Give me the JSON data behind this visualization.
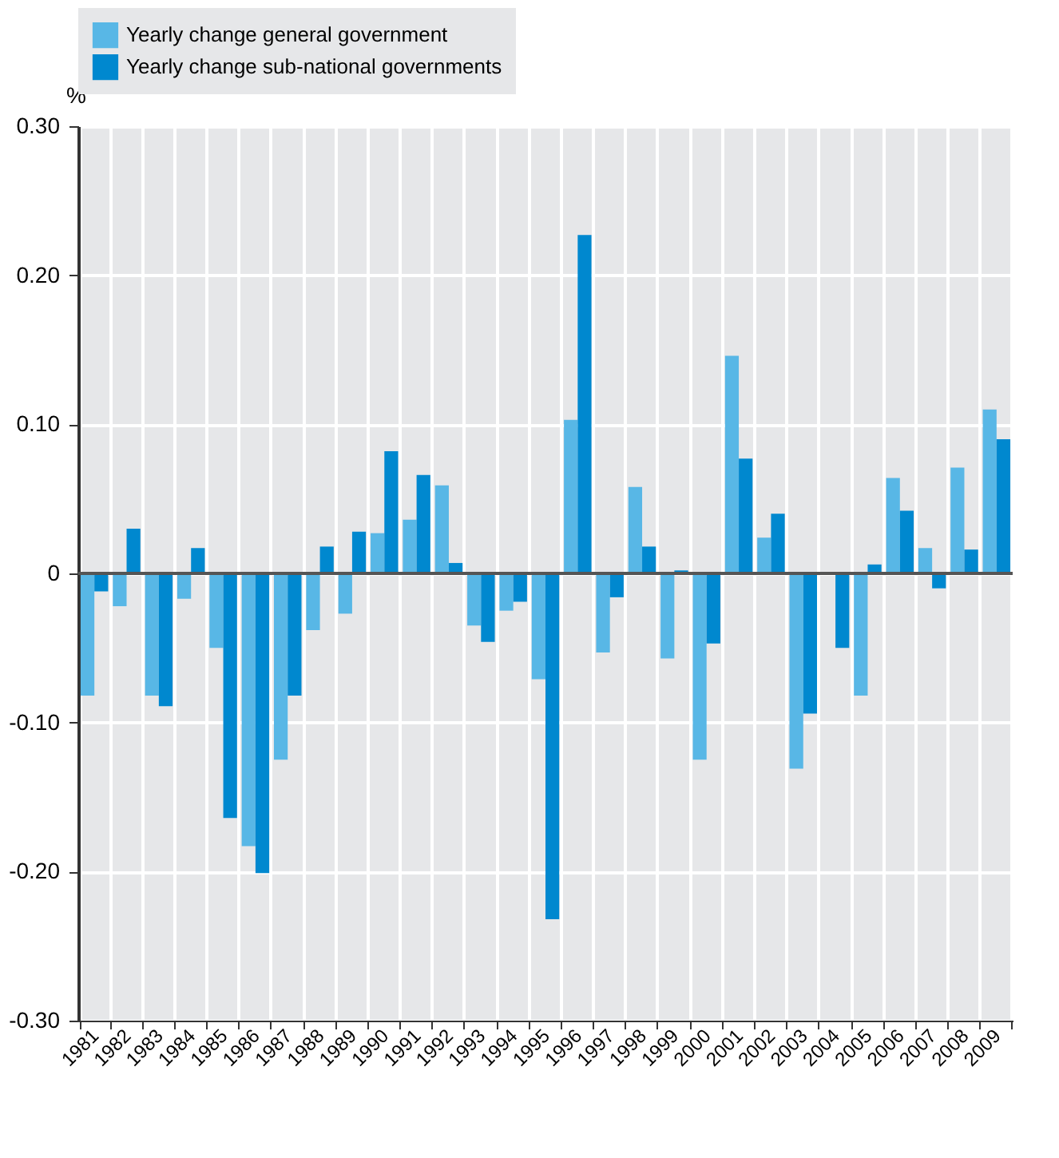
{
  "chart_data": {
    "type": "bar",
    "ylabel": "%",
    "categories": [
      "1981",
      "1982",
      "1983",
      "1984",
      "1985",
      "1986",
      "1987",
      "1988",
      "1989",
      "1990",
      "1991",
      "1992",
      "1993",
      "1994",
      "1995",
      "1996",
      "1997",
      "1998",
      "1999",
      "2000",
      "2001",
      "2002",
      "2003",
      "2004",
      "2005",
      "2006",
      "2007",
      "2008",
      "2009"
    ],
    "series": [
      {
        "name": "Yearly change general government",
        "color": "#58b7e6",
        "values": [
          -0.082,
          -0.022,
          -0.082,
          -0.017,
          -0.05,
          -0.183,
          -0.125,
          -0.038,
          -0.027,
          0.027,
          0.036,
          0.059,
          -0.035,
          -0.025,
          -0.071,
          0.103,
          -0.053,
          0.058,
          -0.057,
          -0.125,
          0.146,
          0.024,
          -0.131,
          0,
          -0.082,
          0.064,
          0.017,
          0.071,
          0.11
        ]
      },
      {
        "name": "Yearly change sub-national governments",
        "color": "#0088cf",
        "values": [
          -0.012,
          0.03,
          -0.089,
          0.017,
          -0.164,
          -0.201,
          -0.082,
          0.018,
          0.028,
          0.082,
          0.066,
          0.007,
          -0.046,
          -0.019,
          -0.232,
          0.227,
          -0.016,
          0.018,
          0.002,
          -0.047,
          0.077,
          0.04,
          -0.094,
          -0.05,
          0.006,
          0.042,
          -0.01,
          0.016,
          0.09
        ]
      }
    ],
    "ylim": [
      -0.3,
      0.3
    ],
    "yticks": [
      {
        "value": -0.3,
        "label": "-0.30"
      },
      {
        "value": -0.2,
        "label": "-0.20"
      },
      {
        "value": -0.1,
        "label": "-0.10"
      },
      0,
      {
        "value": 0.1,
        "label": "0.10"
      },
      {
        "value": 0.2,
        "label": "0.20"
      },
      {
        "value": 0.3,
        "label": "0.30"
      }
    ],
    "ref_lines": [
      {
        "axis": "y",
        "value": 0,
        "color": "#555555"
      }
    ],
    "grid": true,
    "legend": "top"
  }
}
